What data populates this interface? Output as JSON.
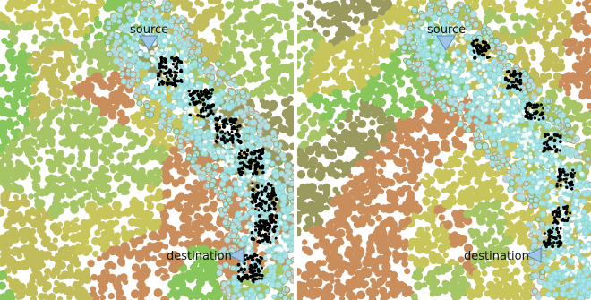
{
  "panels": [
    {
      "source_label": "source",
      "destination_label": "destination"
    },
    {
      "source_label": "source",
      "destination_label": "destination"
    }
  ],
  "colors": {
    "background_patches": [
      "#c8c55a",
      "#9a9a5e",
      "#86c65a",
      "#c98e5c",
      "#c1bd5b",
      "#a6c564"
    ],
    "corridor_fill": "#a9e4e4",
    "corridor_ring_colors": [
      "#c49870",
      "#8aa86a",
      "#c0c0c0"
    ],
    "path_points": "#000000",
    "marker_fill": "#9ec5e6",
    "marker_stroke": "#5a8ab0"
  },
  "icons": {
    "source_marker": "triangle-down-icon",
    "destination_marker": "triangle-left-icon"
  }
}
